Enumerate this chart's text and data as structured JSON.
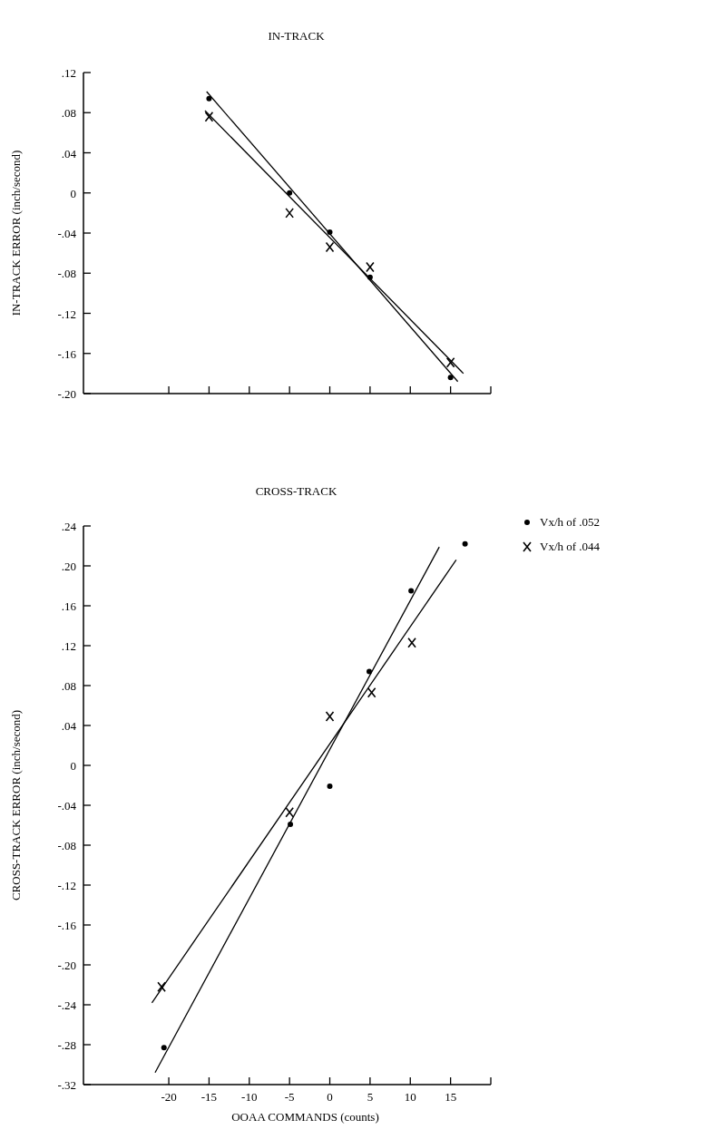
{
  "chart_data": [
    {
      "type": "scatter",
      "title": "IN-TRACK",
      "ylabel": "IN-TRACK ERROR (inch/second)",
      "xlim": [
        -30.6,
        20
      ],
      "xticks": [
        {
          "value": -20,
          "label": null
        },
        {
          "value": -15,
          "label": null
        },
        {
          "value": -10,
          "label": null
        },
        {
          "value": -5,
          "label": null
        },
        {
          "value": 0,
          "label": null
        },
        {
          "value": 5,
          "label": null
        },
        {
          "value": 10,
          "label": null
        },
        {
          "value": 15,
          "label": null
        },
        {
          "value": 20,
          "label": null
        }
      ],
      "ylim": [
        -0.2,
        0.12
      ],
      "yticks": [
        {
          "value": 0.12,
          "label": ".12"
        },
        {
          "value": 0.08,
          "label": ".08"
        },
        {
          "value": 0.04,
          "label": ".04"
        },
        0,
        {
          "value": -0.04,
          "label": "-.04"
        },
        {
          "value": -0.08,
          "label": "-.08"
        },
        {
          "value": -0.12,
          "label": "-.12"
        },
        {
          "value": -0.16,
          "label": "-.16"
        },
        {
          "value": -0.2,
          "label": "-.20"
        }
      ],
      "tick_labels": "y",
      "grid": false,
      "legend": false,
      "series": [
        {
          "marker": "circle",
          "color": "#000000",
          "x": [
            -15,
            -5,
            0,
            5,
            15
          ],
          "values": [
            0.094,
            0.0,
            -0.039,
            -0.084,
            -0.184
          ]
        },
        {
          "marker": "cross",
          "color": "#000000",
          "x": [
            -15,
            -5,
            0,
            5,
            15
          ],
          "values": [
            0.076,
            -0.02,
            -0.054,
            -0.074,
            -0.169
          ]
        },
        {
          "type": "line",
          "marker": "none",
          "color": "#000000",
          "x": [
            -15.3,
            15.9
          ],
          "values": [
            0.101,
            -0.188
          ]
        },
        {
          "type": "line",
          "marker": "none",
          "color": "#000000",
          "x": [
            -15.5,
            16.6
          ],
          "values": [
            0.082,
            -0.18
          ]
        }
      ]
    },
    {
      "type": "scatter",
      "title": "CROSS-TRACK",
      "xlabel": "OOAA COMMANDS (counts)",
      "ylabel": "CROSS-TRACK ERROR (inch/second)",
      "xlim": [
        -30.6,
        20
      ],
      "xticks": [
        -20,
        -15,
        -10,
        -5,
        0,
        5,
        10,
        15,
        {
          "value": 20,
          "label": null
        }
      ],
      "ylim": [
        -0.32,
        0.24
      ],
      "yticks": [
        {
          "value": 0.24,
          "label": ".24"
        },
        {
          "value": 0.2,
          "label": ".20"
        },
        {
          "value": 0.16,
          "label": ".16"
        },
        {
          "value": 0.12,
          "label": ".12"
        },
        {
          "value": 0.08,
          "label": ".08"
        },
        {
          "value": 0.04,
          "label": ".04"
        },
        0,
        {
          "value": -0.04,
          "label": "-.04"
        },
        {
          "value": -0.08,
          "label": "-.08"
        },
        {
          "value": -0.12,
          "label": "-.12"
        },
        {
          "value": -0.16,
          "label": "-.16"
        },
        {
          "value": -0.2,
          "label": "-.20"
        },
        {
          "value": -0.24,
          "label": "-.24"
        },
        {
          "value": -0.28,
          "label": "-.28"
        },
        {
          "value": -0.32,
          "label": "-.32"
        }
      ],
      "grid": false,
      "legend": "right",
      "series": [
        {
          "name": "Vx/h of .052",
          "marker": "circle",
          "color": "#000000",
          "x": [
            -20.6,
            -4.9,
            0,
            4.9,
            10.1,
            16.8
          ],
          "values": [
            -0.283,
            -0.059,
            -0.021,
            0.094,
            0.175,
            0.222
          ]
        },
        {
          "name": "Vx/h of .044",
          "marker": "cross",
          "color": "#000000",
          "x": [
            -20.9,
            -5,
            0,
            5.2,
            10.2
          ],
          "values": [
            -0.222,
            -0.047,
            0.049,
            0.073,
            0.123
          ]
        },
        {
          "type": "line",
          "marker": "none",
          "color": "#000000",
          "x": [
            -21.7,
            13.6
          ],
          "values": [
            -0.308,
            0.219
          ]
        },
        {
          "type": "line",
          "marker": "none",
          "color": "#000000",
          "x": [
            -22.1,
            15.7
          ],
          "values": [
            -0.238,
            0.206
          ]
        }
      ]
    }
  ]
}
